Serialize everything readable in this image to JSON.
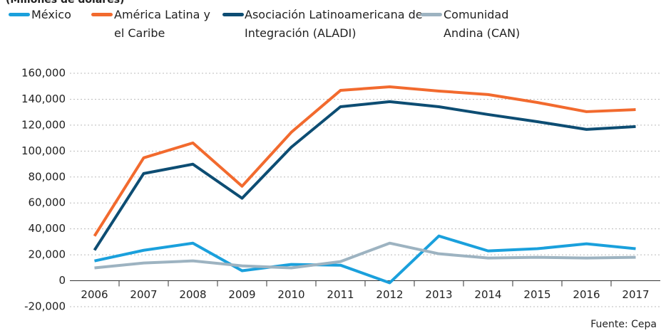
{
  "chart_data": {
    "type": "line",
    "subtitle": "(Millones de dólares)",
    "source": "Fuente: Cepa",
    "categories": [
      "2006",
      "2007",
      "2008",
      "2009",
      "2010",
      "2011",
      "2012",
      "2013",
      "2014",
      "2015",
      "2016",
      "2017"
    ],
    "series": [
      {
        "name": "México",
        "color": "#1aa0dc",
        "values": [
          15300,
          23500,
          29000,
          7700,
          12600,
          12000,
          -1600,
          34500,
          23000,
          24700,
          28500,
          24700
        ]
      },
      {
        "name": "América Latina y el Caribe",
        "color": "#f26a2e",
        "values": [
          34500,
          94800,
          106300,
          72900,
          114500,
          146800,
          149600,
          146300,
          143600,
          137500,
          130400,
          132000
        ]
      },
      {
        "name": "Asociación Latinoamericana de Integración (ALADI)",
        "color": "#0d4d73",
        "values": [
          23600,
          82700,
          89900,
          63600,
          103000,
          134200,
          138100,
          134200,
          128200,
          122700,
          116700,
          118900
        ]
      },
      {
        "name": "Comunidad Andina (CAN)",
        "color": "#9db3c1",
        "values": [
          9900,
          13700,
          15300,
          11500,
          9900,
          14800,
          29000,
          20800,
          17500,
          18100,
          17500,
          18100
        ]
      }
    ],
    "ylim": [
      -20000,
      160000
    ],
    "yticks": [
      {
        "value": -20000,
        "label": "-20,000"
      },
      0,
      {
        "value": 20000,
        "label": "20,000"
      },
      {
        "value": 40000,
        "label": "40,000"
      },
      {
        "value": 60000,
        "label": "60,000"
      },
      {
        "value": 80000,
        "label": "80,000"
      },
      {
        "value": 100000,
        "label": "100,000"
      },
      {
        "value": 120000,
        "label": "120,000"
      },
      {
        "value": 140000,
        "label": "140,000"
      },
      {
        "value": 160000,
        "label": "160,000"
      }
    ],
    "grid": true
  }
}
